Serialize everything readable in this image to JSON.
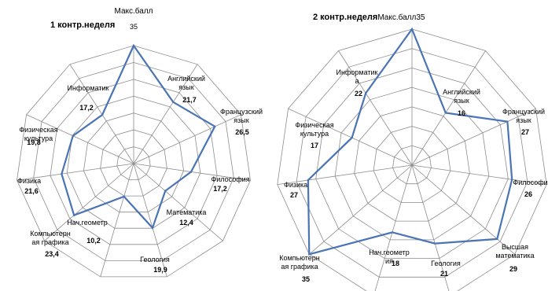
{
  "chart_data": [
    {
      "type": "radar",
      "title": "1 контр.неделя",
      "top_caption": "Макс.балл",
      "rlim": [
        0,
        35
      ],
      "categories": [
        {
          "lines": [
            "Макс.балл"
          ],
          "value": 35,
          "value_label": "35"
        },
        {
          "lines": [
            "Английский",
            "язык"
          ],
          "value": 21.7,
          "value_label": "21,7"
        },
        {
          "lines": [
            "Французский",
            "язык"
          ],
          "value": 26.5,
          "value_label": "26,5"
        },
        {
          "lines": [
            "Философия"
          ],
          "value": 17.2,
          "value_label": "17,2"
        },
        {
          "lines": [
            "Математика"
          ],
          "value": 12.4,
          "value_label": "12,4"
        },
        {
          "lines": [
            "Геология"
          ],
          "value": 19.9,
          "value_label": "19,9"
        },
        {
          "lines": [
            "Нач.геометр"
          ],
          "value": 10.2,
          "value_label": "10,2"
        },
        {
          "lines": [
            "Компьютерн",
            "ая графика"
          ],
          "value": 23.4,
          "value_label": "23,4"
        },
        {
          "lines": [
            "Физика"
          ],
          "value": 21.6,
          "value_label": "21,6"
        },
        {
          "lines": [
            "Физическая",
            "культура"
          ],
          "value": 19.8,
          "value_label": "19,8"
        },
        {
          "lines": [
            "Информатик"
          ],
          "value": 17.2,
          "value_label": "17,2"
        }
      ]
    },
    {
      "type": "radar",
      "title": "2 контр.неделя",
      "title_suffix": "Макс.балл35",
      "rlim": [
        0,
        35
      ],
      "categories": [
        {
          "lines": [],
          "value": 35,
          "value_label": ""
        },
        {
          "lines": [
            "Английский",
            "язык"
          ],
          "value": 16,
          "value_label": "16"
        },
        {
          "lines": [
            "Французский",
            "язык"
          ],
          "value": 27,
          "value_label": "27"
        },
        {
          "lines": [
            "Философия"
          ],
          "value": 26,
          "value_label": "26"
        },
        {
          "lines": [
            "Высшая",
            "математика"
          ],
          "value": 29,
          "value_label": "29"
        },
        {
          "lines": [
            "Геология"
          ],
          "value": 21,
          "value_label": "21"
        },
        {
          "lines": [
            "Нач.геометр",
            "ия"
          ],
          "value": 18,
          "value_label": "18"
        },
        {
          "lines": [
            "Компьютерн",
            "ая графика"
          ],
          "value": 35,
          "value_label": "35"
        },
        {
          "lines": [
            "Физика"
          ],
          "value": 27,
          "value_label": "27"
        },
        {
          "lines": [
            "Физическая",
            "культура"
          ],
          "value": 17,
          "value_label": "17"
        },
        {
          "lines": [
            "Информатик",
            "а"
          ],
          "value": 22,
          "value_label": "22"
        }
      ]
    }
  ],
  "colors": {
    "series": "#4a74b4",
    "grid": "#8c8c8c",
    "axis": "#8c8c8c"
  }
}
